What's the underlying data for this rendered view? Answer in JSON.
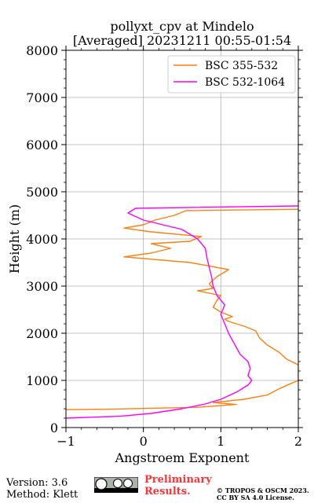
{
  "chart_data": {
    "type": "line",
    "title": "pollyxt_cpv at Mindelo",
    "subtitle": "[Averaged] 20231211 00:55-01:54",
    "xlabel": "Angstroem Exponent",
    "ylabel": "Height (m)",
    "xlim": [
      -1,
      2
    ],
    "ylim": [
      0,
      8000
    ],
    "xticks": [
      "−1",
      "0",
      "1",
      "2"
    ],
    "yticks": [
      "0",
      "1000",
      "2000",
      "3000",
      "4000",
      "5000",
      "6000",
      "7000",
      "8000"
    ],
    "grid": true,
    "legend_position": "top-right",
    "series": [
      {
        "name": "BSC 355-532",
        "color": "#ff7f0e",
        "points": [
          [
            -1,
            380
          ],
          [
            -0.4,
            390
          ],
          [
            0.7,
            430
          ],
          [
            1.2,
            490
          ],
          [
            0.9,
            530
          ],
          [
            1.3,
            600
          ],
          [
            1.6,
            690
          ],
          [
            1.75,
            820
          ],
          [
            1.9,
            930
          ],
          [
            2,
            1000
          ],
          [
            2,
            1330
          ],
          [
            1.85,
            1450
          ],
          [
            1.75,
            1600
          ],
          [
            1.6,
            1750
          ],
          [
            1.5,
            1900
          ],
          [
            1.45,
            2050
          ],
          [
            1.3,
            2150
          ],
          [
            1.1,
            2250
          ],
          [
            1.05,
            2300
          ],
          [
            1.15,
            2350
          ],
          [
            1.0,
            2450
          ],
          [
            0.9,
            2550
          ],
          [
            0.95,
            2700
          ],
          [
            1.0,
            2800
          ],
          [
            0.7,
            2900
          ],
          [
            0.9,
            2950
          ],
          [
            0.85,
            3050
          ],
          [
            0.95,
            3200
          ],
          [
            1.1,
            3350
          ],
          [
            0.6,
            3500
          ],
          [
            -0.25,
            3620
          ],
          [
            0.1,
            3700
          ],
          [
            0.35,
            3800
          ],
          [
            0.1,
            3900
          ],
          [
            0.6,
            3950
          ],
          [
            0.75,
            4050
          ],
          [
            0.1,
            4150
          ],
          [
            -0.25,
            4230
          ],
          [
            0.0,
            4300
          ],
          [
            0.15,
            4400
          ],
          [
            0.4,
            4500
          ],
          [
            0.55,
            4600
          ],
          [
            2,
            4630
          ]
        ]
      },
      {
        "name": "BSC 532-1064",
        "color": "#ff00ff",
        "points": [
          [
            -1,
            200
          ],
          [
            -0.3,
            240
          ],
          [
            0.1,
            300
          ],
          [
            0.5,
            400
          ],
          [
            0.8,
            500
          ],
          [
            1.0,
            600
          ],
          [
            1.2,
            750
          ],
          [
            1.35,
            900
          ],
          [
            1.4,
            1000
          ],
          [
            1.35,
            1100
          ],
          [
            1.38,
            1250
          ],
          [
            1.35,
            1400
          ],
          [
            1.25,
            1550
          ],
          [
            1.2,
            1700
          ],
          [
            1.15,
            1850
          ],
          [
            1.1,
            2000
          ],
          [
            1.05,
            2200
          ],
          [
            1.0,
            2400
          ],
          [
            1.05,
            2600
          ],
          [
            0.95,
            2800
          ],
          [
            0.9,
            3000
          ],
          [
            0.88,
            3200
          ],
          [
            0.85,
            3400
          ],
          [
            0.82,
            3600
          ],
          [
            0.8,
            3800
          ],
          [
            0.7,
            4000
          ],
          [
            0.5,
            4200
          ],
          [
            0.0,
            4400
          ],
          [
            -0.2,
            4550
          ],
          [
            -0.1,
            4650
          ],
          [
            2,
            4700
          ]
        ]
      }
    ]
  },
  "footer": {
    "version": "Version: 3.6",
    "method": "Method: Klett",
    "preliminary_line1": "Preliminary",
    "preliminary_line2": "Results.",
    "copyright_line1": "© TROPOS & OSCM 2023.",
    "copyright_line2": "CC BY SA 4.0 License."
  }
}
